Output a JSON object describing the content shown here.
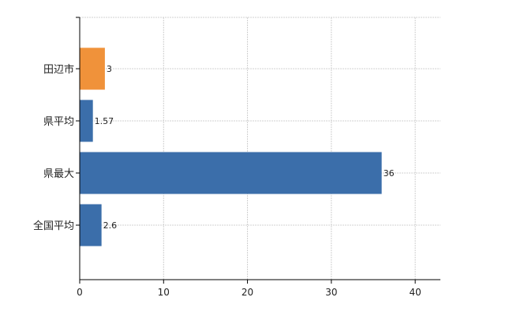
{
  "chart_data": {
    "type": "bar",
    "orientation": "horizontal",
    "categories": [
      "田辺市",
      "県平均",
      "県最大",
      "全国平均"
    ],
    "values": [
      3,
      1.57,
      36,
      2.6
    ],
    "data_labels": [
      "3",
      "1.57",
      "36",
      "2.6"
    ],
    "colors": [
      "#f0923a",
      "#3b6eaa",
      "#3b6eaa",
      "#3b6eaa"
    ],
    "xlim": [
      0,
      43
    ],
    "xticks": [
      0,
      10,
      20,
      30,
      40
    ],
    "xtick_labels": [
      "0",
      "10",
      "20",
      "30",
      "40"
    ],
    "grid": true,
    "legend": "none"
  }
}
